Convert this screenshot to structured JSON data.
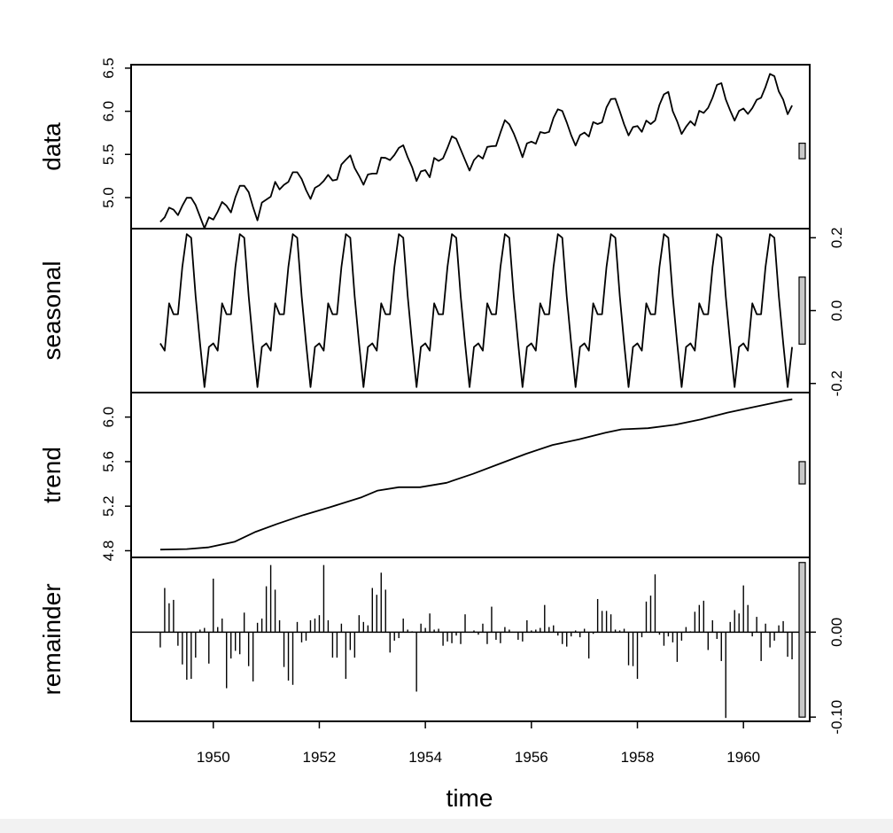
{
  "chart_data": {
    "type": "line",
    "title": "",
    "xlabel": "time",
    "x_start": 1949.0,
    "x_step": 0.0833333,
    "x_ticks": [
      1950,
      1952,
      1954,
      1956,
      1958,
      1960
    ],
    "xlim": [
      1948.45,
      1961.25
    ],
    "panels": [
      {
        "name": "data",
        "label": "data",
        "style": "line",
        "ylim": [
          4.64,
          6.54
        ],
        "y_ticks": [
          5.0,
          5.5,
          6.0,
          6.5
        ],
        "tick_side": "left",
        "range_bar": [
          5.45,
          5.63
        ],
        "values": [
          4.718,
          4.771,
          4.883,
          4.86,
          4.796,
          4.905,
          4.997,
          4.997,
          4.913,
          4.779,
          4.644,
          4.771,
          4.745,
          4.836,
          4.949,
          4.905,
          4.828,
          5.004,
          5.136,
          5.136,
          5.063,
          4.891,
          4.736,
          4.942,
          4.977,
          5.011,
          5.182,
          5.094,
          5.147,
          5.182,
          5.293,
          5.293,
          5.215,
          5.087,
          4.984,
          5.112,
          5.142,
          5.193,
          5.263,
          5.198,
          5.209,
          5.384,
          5.438,
          5.489,
          5.342,
          5.252,
          5.148,
          5.268,
          5.278,
          5.278,
          5.464,
          5.46,
          5.434,
          5.493,
          5.576,
          5.606,
          5.468,
          5.352,
          5.192,
          5.303,
          5.318,
          5.236,
          5.46,
          5.425,
          5.455,
          5.576,
          5.71,
          5.68,
          5.557,
          5.434,
          5.313,
          5.434,
          5.489,
          5.451,
          5.587,
          5.595,
          5.598,
          5.753,
          5.897,
          5.849,
          5.743,
          5.613,
          5.468,
          5.628,
          5.649,
          5.624,
          5.759,
          5.746,
          5.762,
          5.924,
          6.023,
          6.004,
          5.872,
          5.724,
          5.602,
          5.724,
          5.753,
          5.707,
          5.875,
          5.852,
          5.872,
          6.045,
          6.142,
          6.146,
          6.001,
          5.849,
          5.72,
          5.817,
          5.829,
          5.762,
          5.892,
          5.852,
          5.894,
          6.075,
          6.196,
          6.225,
          6.001,
          5.883,
          5.737,
          5.82,
          5.886,
          5.835,
          6.006,
          5.981,
          6.04,
          6.157,
          6.306,
          6.326,
          6.138,
          6.009,
          5.892,
          6.004,
          6.033,
          5.969,
          6.038,
          6.133,
          6.157,
          6.282,
          6.433,
          6.407,
          6.23,
          6.133,
          5.966,
          6.068
        ]
      },
      {
        "name": "seasonal",
        "label": "seasonal",
        "style": "line",
        "ylim": [
          -0.225,
          0.225
        ],
        "y_ticks": [
          -0.2,
          0.0,
          0.2
        ],
        "tick_labels": [
          "-0.2",
          "0.0",
          "0.2"
        ],
        "tick_side": "right",
        "range_bar": [
          -0.092,
          0.092
        ],
        "values": [
          -0.09,
          -0.11,
          0.02,
          -0.01,
          -0.01,
          0.12,
          0.21,
          0.2,
          0.04,
          -0.09,
          -0.21,
          -0.1
        ]
      },
      {
        "name": "trend",
        "label": "trend",
        "style": "line",
        "ylim": [
          4.74,
          6.22
        ],
        "y_ticks": [
          4.8,
          5.2,
          5.6,
          6.0
        ],
        "tick_side": "left",
        "range_bar": [
          5.4,
          5.6
        ],
        "knots": [
          [
            1949.0,
            4.81
          ],
          [
            1949.5,
            4.815
          ],
          [
            1949.9,
            4.83
          ],
          [
            1950.4,
            4.88
          ],
          [
            1950.8,
            4.97
          ],
          [
            1951.2,
            5.04
          ],
          [
            1951.7,
            5.12
          ],
          [
            1952.2,
            5.19
          ],
          [
            1952.8,
            5.28
          ],
          [
            1953.1,
            5.34
          ],
          [
            1953.5,
            5.37
          ],
          [
            1953.9,
            5.37
          ],
          [
            1954.4,
            5.41
          ],
          [
            1954.9,
            5.49
          ],
          [
            1955.4,
            5.58
          ],
          [
            1955.9,
            5.67
          ],
          [
            1956.4,
            5.75
          ],
          [
            1956.9,
            5.8
          ],
          [
            1957.4,
            5.86
          ],
          [
            1957.7,
            5.89
          ],
          [
            1958.2,
            5.9
          ],
          [
            1958.7,
            5.93
          ],
          [
            1959.2,
            5.98
          ],
          [
            1959.7,
            6.04
          ],
          [
            1960.2,
            6.09
          ],
          [
            1960.8,
            6.15
          ],
          [
            1960.92,
            6.16
          ]
        ]
      },
      {
        "name": "remainder",
        "label": "remainder",
        "style": "bars",
        "ylim": [
          -0.105,
          0.088
        ],
        "y_ticks": [
          -0.1,
          0.0
        ],
        "tick_labels": [
          "-0.10",
          "0.00"
        ],
        "tick_side": "right",
        "range_bar": [
          -0.1,
          0.082
        ],
        "values": [
          -0.018,
          0.052,
          0.034,
          0.038,
          -0.016,
          -0.038,
          -0.056,
          -0.055,
          -0.03,
          0.003,
          0.005,
          -0.037,
          0.063,
          0.006,
          0.016,
          -0.066,
          -0.031,
          -0.022,
          -0.026,
          0.023,
          -0.04,
          -0.058,
          0.011,
          0.016,
          0.054,
          0.079,
          0.05,
          0.014,
          -0.041,
          -0.057,
          -0.062,
          0.012,
          -0.012,
          -0.01,
          0.014,
          0.016,
          0.02,
          0.079,
          0.014,
          -0.03,
          -0.03,
          0.01,
          -0.055,
          -0.021,
          -0.03,
          0.02,
          0.012,
          0.008,
          0.052,
          0.044,
          0.07,
          0.05,
          -0.024,
          -0.01,
          -0.007,
          0.016,
          0.003,
          0.001,
          -0.07,
          0.01,
          0.005,
          0.022,
          0.003,
          0.004,
          -0.016,
          -0.011,
          -0.013,
          -0.004,
          -0.014,
          0.021,
          0.0,
          0.002,
          -0.003,
          0.01,
          -0.014,
          0.03,
          -0.009,
          -0.013,
          0.006,
          0.003,
          0.0,
          -0.009,
          -0.011,
          0.014,
          0.002,
          0.003,
          0.005,
          0.032,
          0.006,
          0.008,
          -0.004,
          -0.014,
          -0.017,
          -0.005,
          0.002,
          -0.006,
          0.004,
          -0.031,
          -0.002,
          0.039,
          0.025,
          0.025,
          0.021,
          0.003,
          0.002,
          0.004,
          -0.039,
          -0.04,
          -0.055,
          -0.006,
          0.036,
          0.043,
          0.068,
          -0.003,
          -0.016,
          -0.005,
          -0.012,
          -0.035,
          -0.01,
          0.006,
          0.001,
          0.024,
          0.032,
          0.037,
          -0.021,
          0.014,
          -0.008,
          -0.034,
          -0.101,
          0.012,
          0.026,
          0.022,
          0.055,
          0.032,
          -0.005,
          0.018,
          -0.034,
          0.01,
          -0.018,
          -0.01,
          0.008,
          0.013,
          -0.029,
          -0.032
        ]
      }
    ]
  }
}
